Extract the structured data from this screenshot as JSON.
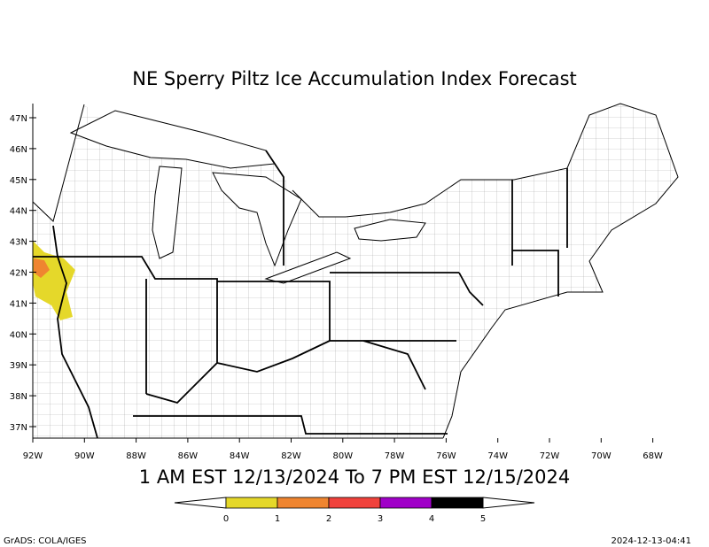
{
  "title": "NE Sperry Piltz Ice Accumulation Index Forecast",
  "valid_period": "1 AM EST 12/13/2024 To 7 PM EST 12/15/2024",
  "lat_labels": [
    "47N",
    "46N",
    "45N",
    "44N",
    "43N",
    "42N",
    "41N",
    "40N",
    "39N",
    "38N",
    "37N"
  ],
  "lon_labels": [
    "92W",
    "90W",
    "88W",
    "86W",
    "84W",
    "82W",
    "80W",
    "78W",
    "76W",
    "74W",
    "72W",
    "70W",
    "68W"
  ],
  "colorbar": {
    "colors": [
      "#e5d82a",
      "#ef8530",
      "#f0423c",
      "#a000c8",
      "#000000"
    ],
    "ticks": [
      0,
      1,
      2,
      3,
      4,
      5
    ]
  },
  "footer_left": "GrADS: COLA/IGES",
  "footer_right": "2024-12-13-04:41"
}
